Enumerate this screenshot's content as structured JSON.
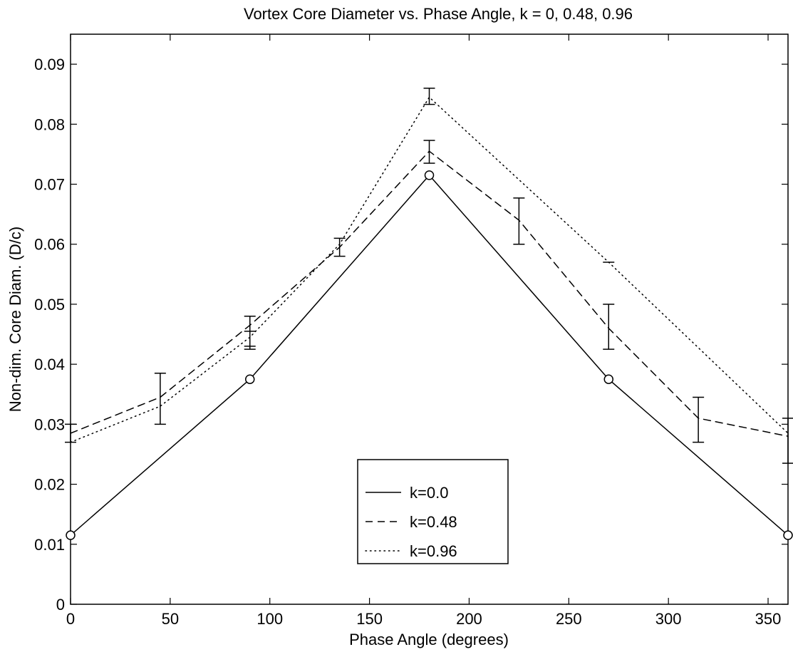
{
  "chart_data": {
    "type": "line",
    "title": "Vortex Core Diameter vs. Phase Angle, k = 0, 0.48, 0.96",
    "xlabel": "Phase Angle (degrees)",
    "ylabel": "Non-dim. Core Diam. (D/c)",
    "xlim": [
      0,
      360
    ],
    "ylim": [
      0,
      0.095
    ],
    "xticks": [
      0,
      50,
      100,
      150,
      200,
      250,
      300,
      350
    ],
    "xtick_labels": [
      "0",
      "50",
      "100",
      "150",
      "200",
      "250",
      "300",
      "350"
    ],
    "yticks": [
      0,
      0.01,
      0.02,
      0.03,
      0.04,
      0.05,
      0.06,
      0.07,
      0.08,
      0.09
    ],
    "ytick_labels": [
      "0",
      "0.01",
      "0.02",
      "0.03",
      "0.04",
      "0.05",
      "0.06",
      "0.07",
      "0.08",
      "0.09"
    ],
    "grid": false,
    "legend": {
      "position": "bottom-center"
    },
    "series": [
      {
        "name": "k=0.0",
        "line_style": "solid",
        "marker": "circle",
        "color": "#000000",
        "x": [
          0,
          90,
          180,
          270,
          360
        ],
        "y": [
          0.0115,
          0.0375,
          0.0715,
          0.0375,
          0.0115
        ]
      },
      {
        "name": "k=0.48",
        "line_style": "dashed",
        "marker": "none",
        "color": "#000000",
        "x": [
          0,
          45,
          90,
          135,
          180,
          225,
          270,
          315,
          360
        ],
        "y": [
          0.0285,
          0.0345,
          0.0465,
          0.0595,
          0.0755,
          0.064,
          0.046,
          0.031,
          0.028
        ],
        "error_low": [
          0.027,
          0.03,
          0.0425,
          0.058,
          0.0735,
          0.06,
          0.0425,
          0.027,
          0.0235
        ],
        "error_high": [
          0.03,
          0.0385,
          0.048,
          0.061,
          0.0773,
          0.0677,
          0.05,
          0.0345,
          0.031
        ]
      },
      {
        "name": "k=0.96",
        "line_style": "dotted",
        "marker": "none",
        "color": "#000000",
        "x": [
          0,
          45,
          90,
          135,
          180,
          270,
          360
        ],
        "y": [
          0.027,
          0.033,
          0.0445,
          0.06,
          0.0845,
          0.057,
          0.0285
        ],
        "error_low": [
          null,
          null,
          0.043,
          null,
          0.0833,
          null,
          null
        ],
        "error_high": [
          null,
          null,
          0.0455,
          null,
          0.086,
          0.057,
          null
        ]
      }
    ]
  }
}
